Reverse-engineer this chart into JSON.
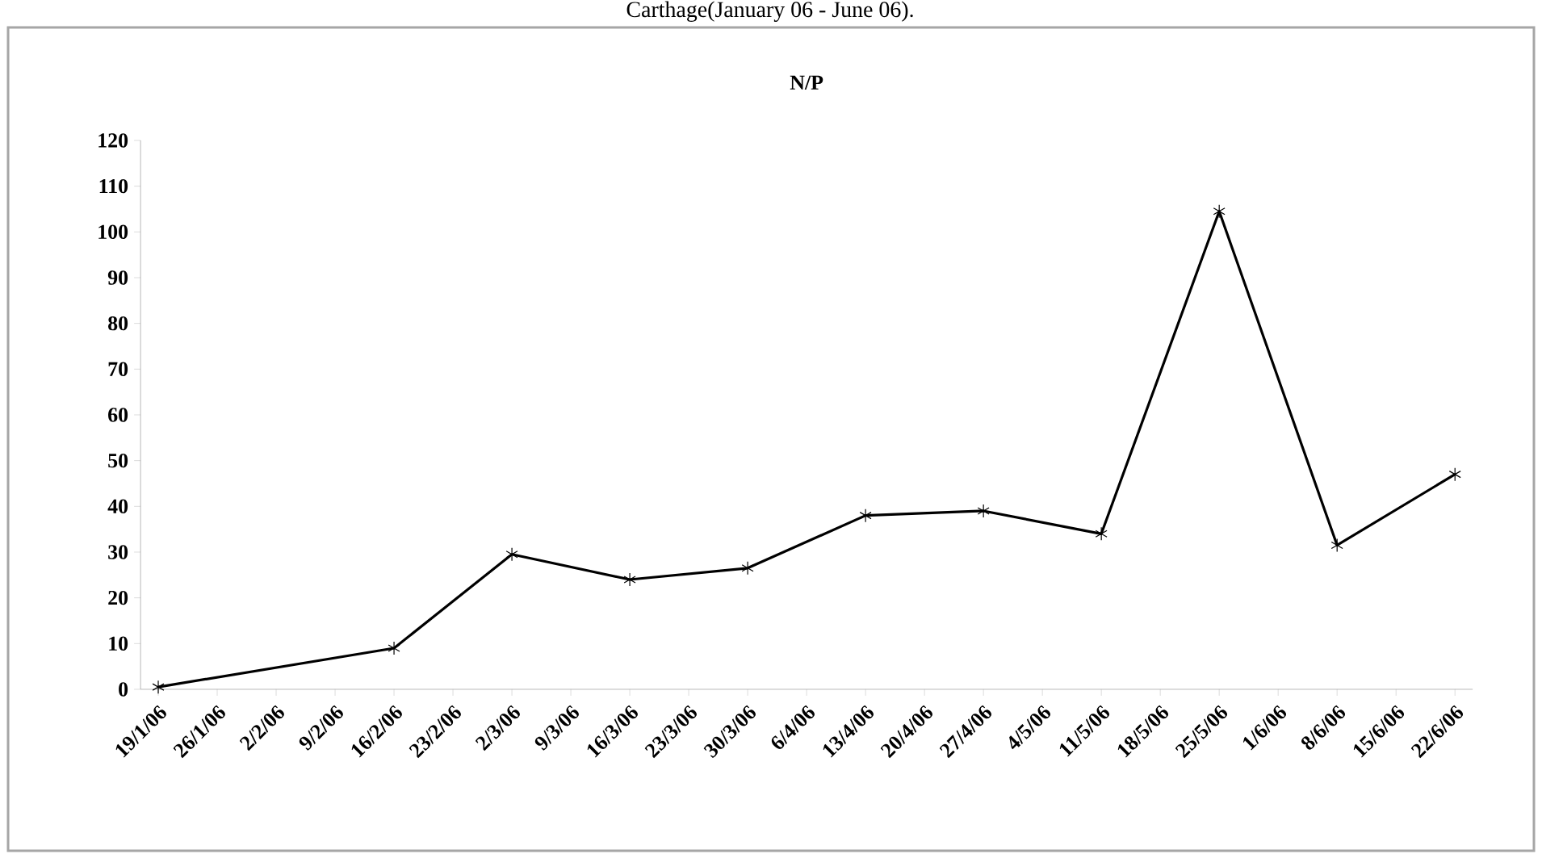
{
  "chart_data": {
    "type": "line",
    "title": "N/P",
    "annotations": [
      "Carthage(January 06 - June 06)."
    ],
    "categories": [
      "19/1/06",
      "26/1/06",
      "2/2/06",
      "9/2/06",
      "16/2/06",
      "23/2/06",
      "2/3/06",
      "9/3/06",
      "16/3/06",
      "23/3/06",
      "30/3/06",
      "6/4/06",
      "13/4/06",
      "20/4/06",
      "27/4/06",
      "4/5/06",
      "11/5/06",
      "18/5/06",
      "25/5/06",
      "1/6/06",
      "8/6/06",
      "15/6/06",
      "22/6/06"
    ],
    "series": [
      {
        "color": "#000000",
        "values": [
          0.5,
          null,
          null,
          null,
          9,
          null,
          29.5,
          null,
          24,
          null,
          26.5,
          null,
          38,
          null,
          39,
          null,
          34,
          null,
          104.5,
          null,
          31.5,
          null,
          47
        ]
      }
    ],
    "ylim": [
      0,
      120
    ],
    "yticks": [
      0,
      10,
      20,
      30,
      40,
      50,
      60,
      70,
      80,
      90,
      100,
      110,
      120
    ],
    "marker": "cross",
    "line_style": "solid",
    "grid": false
  }
}
